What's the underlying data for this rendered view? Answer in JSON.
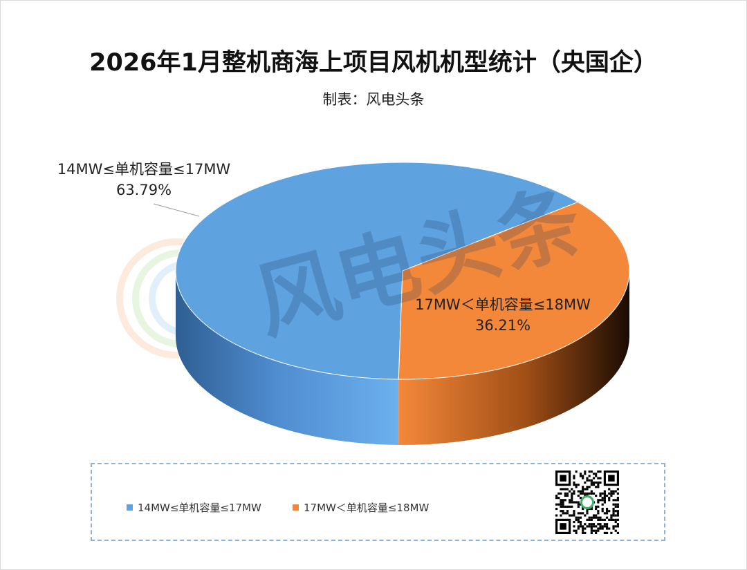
{
  "title": "2026年1月整机商海上项目风机机型统计（央国企）",
  "subtitle": "制表：风电头条",
  "watermark": "风电头条",
  "colors": {
    "series_1": "#5fa2e0",
    "series_2": "#f4883a"
  },
  "chart_data": {
    "type": "pie",
    "style": "3d",
    "categories": [
      "14MW≤单机容量≤17MW",
      "17MW＜单机容量≤18MW"
    ],
    "values": [
      63.79,
      36.21
    ],
    "data_labels": [
      {
        "category": "14MW≤单机容量≤17MW",
        "value": "63.79%"
      },
      {
        "category": "17MW＜单机容量≤18MW",
        "value": "36.21%"
      }
    ],
    "legend_placement": "bottom"
  },
  "legend": {
    "items": [
      "14MW≤单机容量≤17MW",
      "17MW＜单机容量≤18MW"
    ]
  }
}
